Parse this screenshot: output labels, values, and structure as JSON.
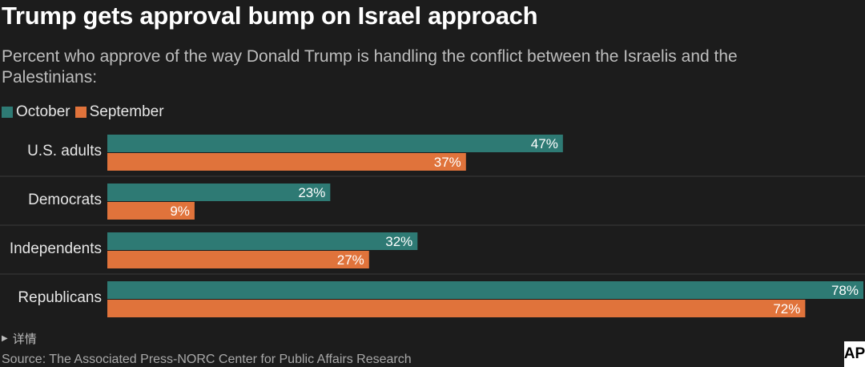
{
  "chart_data": {
    "type": "bar",
    "orientation": "horizontal",
    "title": "Trump gets approval bump on Israel approach",
    "subtitle": "Percent who approve of the way Donald Trump is handling the conflict between the Israelis and the Palestinians:",
    "categories": [
      "U.S. adults",
      "Democrats",
      "Independents",
      "Republicans"
    ],
    "series": [
      {
        "name": "October",
        "values": [
          47,
          23,
          32,
          78
        ],
        "color": "#2e7a74"
      },
      {
        "name": "September",
        "values": [
          37,
          9,
          27,
          72
        ],
        "color": "#e0733b"
      }
    ],
    "value_suffix": "%",
    "xlim": [
      0,
      78
    ],
    "legend_position": "top-left",
    "grid": false
  },
  "footer": {
    "details_label": "详情",
    "source": "Source: The Associated Press-NORC Center for Public Affairs Research",
    "logo_text": "AP"
  },
  "colors": {
    "background": "#1c1c1c",
    "separator": "#3a3a3a"
  }
}
